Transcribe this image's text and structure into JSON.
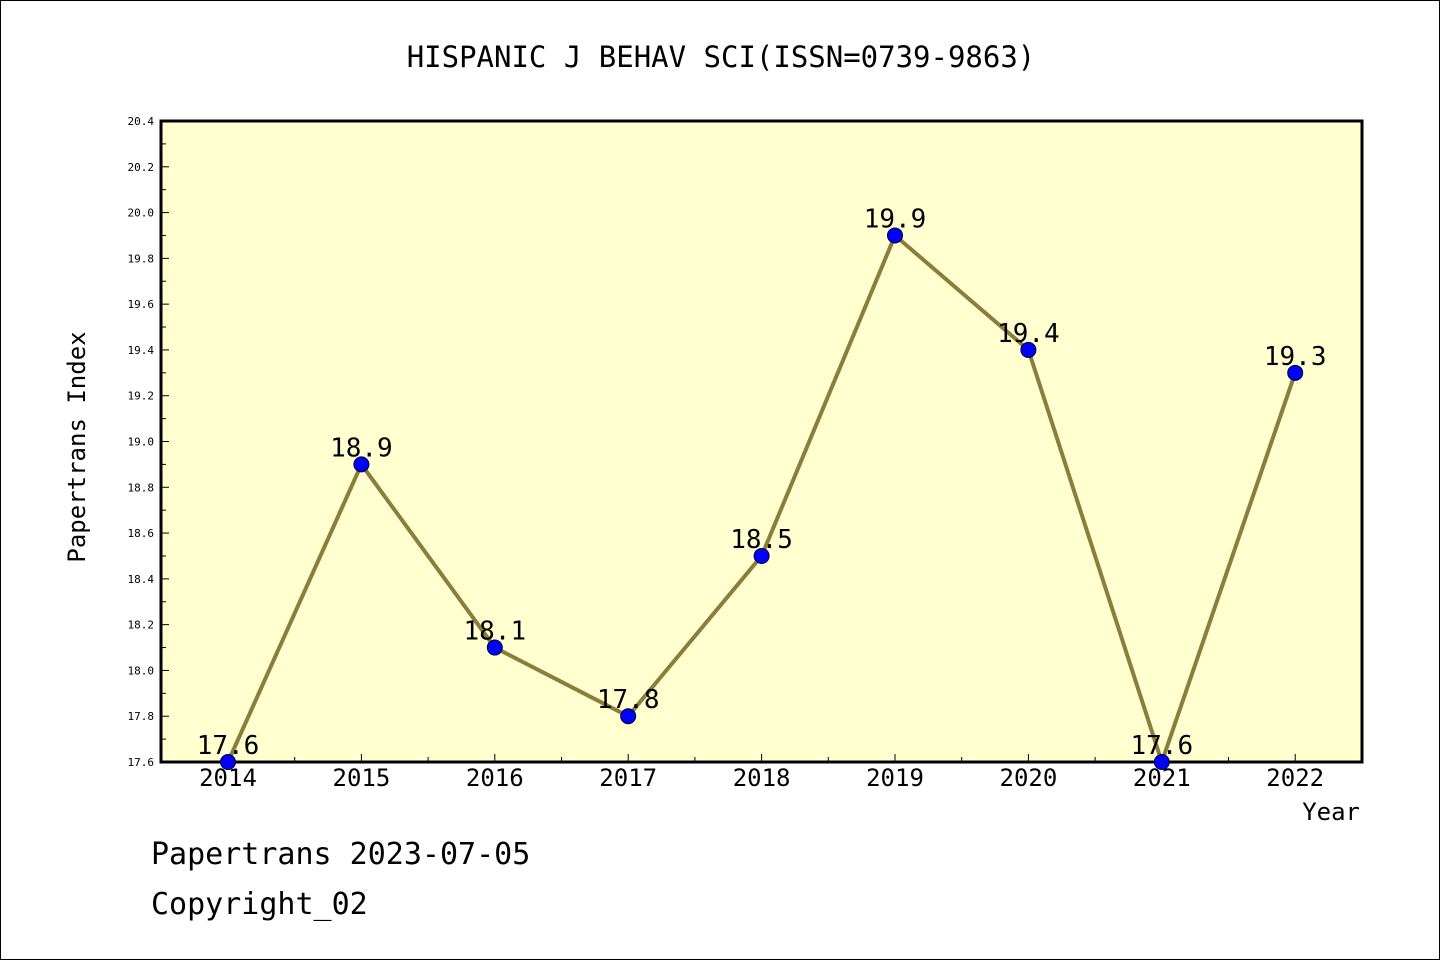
{
  "chart_data": {
    "type": "line",
    "title": "HISPANIC J BEHAV SCI(ISSN=0739-9863)",
    "xlabel": "Year",
    "ylabel": "Papertrans Index",
    "categories": [
      "2014",
      "2015",
      "2016",
      "2017",
      "2018",
      "2019",
      "2020",
      "2021",
      "2022"
    ],
    "values": [
      17.6,
      18.9,
      18.1,
      17.8,
      18.5,
      19.9,
      19.4,
      17.6,
      19.3
    ],
    "data_labels": [
      "17.6",
      "18.9",
      "18.1",
      "17.8",
      "18.5",
      "19.9",
      "19.4",
      "17.6",
      "19.3"
    ],
    "ylim": [
      17.6,
      20.4
    ],
    "yticks": [
      "17.6",
      "17.8",
      "18.0",
      "18.2",
      "18.4",
      "18.6",
      "18.8",
      "19.0",
      "19.2",
      "19.4",
      "19.6",
      "19.8",
      "20.0",
      "20.2",
      "20.4"
    ],
    "grid": false,
    "colors": {
      "plot_background": "#ffffd0",
      "line": "#8b7d3a",
      "marker": "#0000ff"
    }
  },
  "footer": {
    "line1": "Papertrans 2023-07-05",
    "line2": "Copyright_02"
  }
}
